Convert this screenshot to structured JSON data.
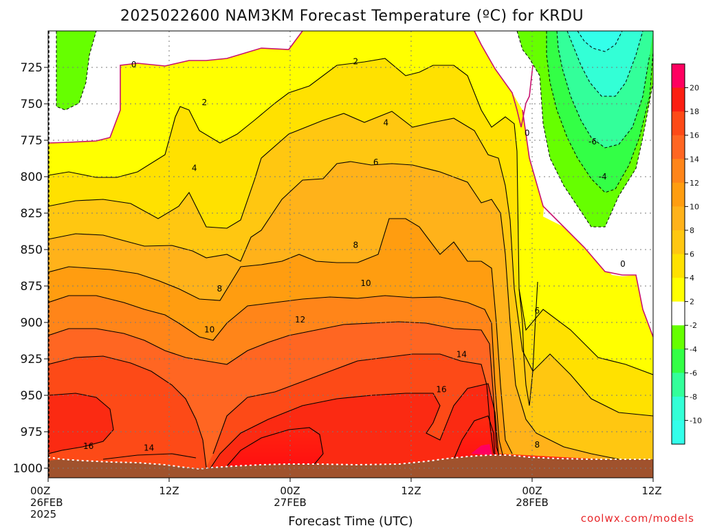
{
  "title": "2025022600 NAM3KM Forecast Temperature (ºC) for KRDU",
  "xlabel": "Forecast Time (UTC)",
  "credit": "coolwx.com/models",
  "chart_data": {
    "type": "heatmap",
    "title": "2025022600 NAM3KM Forecast Temperature (ºC) for KRDU",
    "xlabel": "Forecast Time (UTC)",
    "ylabel": "",
    "x_ticks": [
      {
        "hour": 0,
        "lines": [
          "00Z",
          "26FEB",
          "2025"
        ]
      },
      {
        "hour": 12,
        "lines": [
          "12Z"
        ]
      },
      {
        "hour": 24,
        "lines": [
          "00Z",
          "27FEB"
        ]
      },
      {
        "hour": 36,
        "lines": [
          "12Z"
        ]
      },
      {
        "hour": 48,
        "lines": [
          "00Z",
          "28FEB"
        ]
      },
      {
        "hour": 60,
        "lines": [
          "12Z"
        ]
      }
    ],
    "xlim_hours": [
      0,
      60
    ],
    "y_ticks": [
      725,
      750,
      775,
      800,
      825,
      850,
      875,
      900,
      925,
      950,
      975,
      1000
    ],
    "ylim_hPa": [
      700,
      1000
    ],
    "grid": true,
    "colorbar": {
      "labels": [
        "20",
        "18",
        "16",
        "14",
        "12",
        "10",
        "8",
        "6",
        "4",
        "2",
        "-2",
        "-4",
        "-6",
        "-8",
        "-10"
      ],
      "colors": [
        "#ff0060",
        "#fb1f12",
        "#fd4a17",
        "#ff6622",
        "#ff8519",
        "#ff9d10",
        "#ffb21a",
        "#ffc711",
        "#ffe100",
        "#ffff00",
        "#ffffff",
        "#66ff00",
        "#33ff46",
        "#33ff9a",
        "#33ffd6",
        "#33ffea"
      ]
    },
    "contour_labels": [
      {
        "text": "0",
        "hour": 8.5,
        "hPa": 723
      },
      {
        "text": "2",
        "hour": 15.5,
        "hPa": 749
      },
      {
        "text": "2",
        "hour": 30.5,
        "hPa": 721
      },
      {
        "text": "4",
        "hour": 14.5,
        "hPa": 794
      },
      {
        "text": "4",
        "hour": 33.5,
        "hPa": 763
      },
      {
        "text": "6",
        "hour": 32.5,
        "hPa": 790
      },
      {
        "text": "8",
        "hour": 30.5,
        "hPa": 847
      },
      {
        "text": "8",
        "hour": 17,
        "hPa": 877
      },
      {
        "text": "10",
        "hour": 31.5,
        "hPa": 873
      },
      {
        "text": "10",
        "hour": 16,
        "hPa": 905
      },
      {
        "text": "12",
        "hour": 25,
        "hPa": 898
      },
      {
        "text": "14",
        "hour": 41,
        "hPa": 922
      },
      {
        "text": "16",
        "hour": 39,
        "hPa": 946
      },
      {
        "text": "16",
        "hour": 4,
        "hPa": 985
      },
      {
        "text": "14",
        "hour": 10,
        "hPa": 986
      },
      {
        "text": "0",
        "hour": 47.5,
        "hPa": 770
      },
      {
        "text": "6",
        "hour": 48.5,
        "hPa": 892
      },
      {
        "text": "8",
        "hour": 48.5,
        "hPa": 984
      },
      {
        "text": "-6",
        "hour": 54,
        "hPa": 776
      },
      {
        "text": "-4",
        "hour": 55,
        "hPa": 800
      },
      {
        "text": "0",
        "hour": 57,
        "hPa": 860
      }
    ]
  }
}
